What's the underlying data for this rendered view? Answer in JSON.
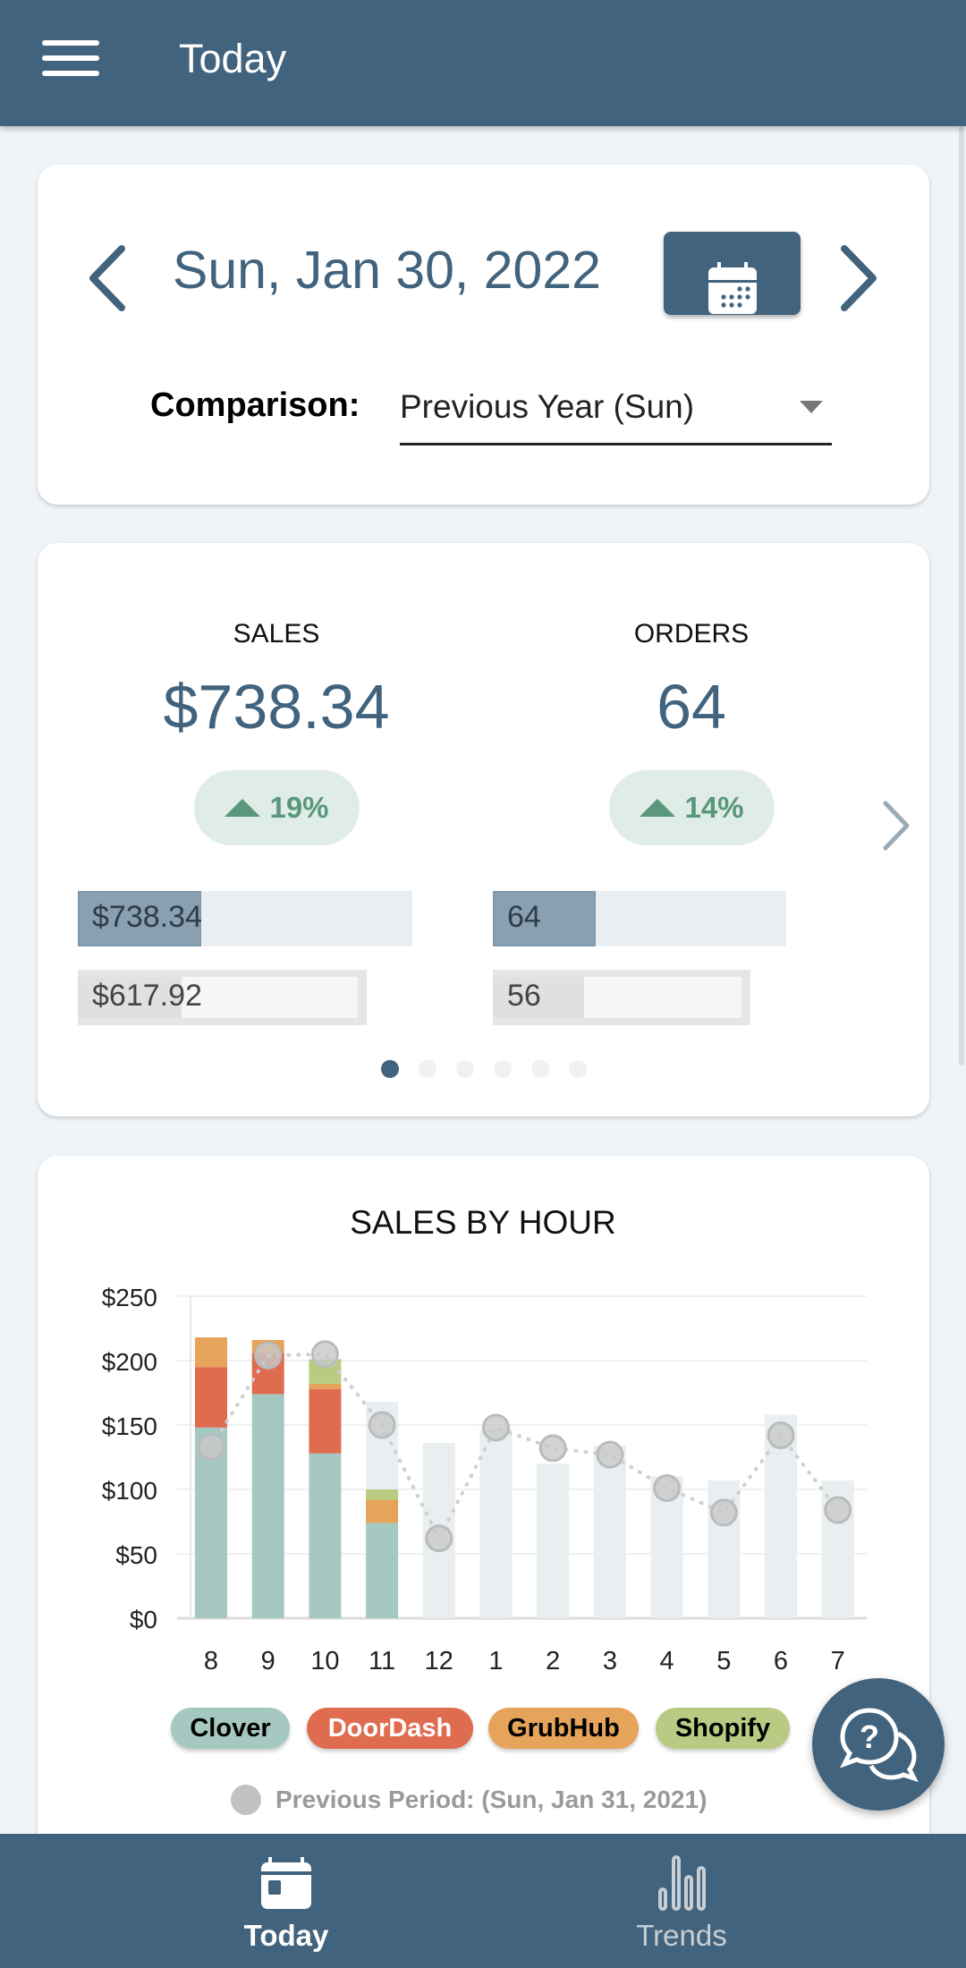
{
  "header": {
    "title": "Today",
    "menu_icon": "hamburger-icon"
  },
  "date_card": {
    "date": "Sun, Jan 30, 2022",
    "comparison_label": "Comparison:",
    "comparison_value": "Previous Year (Sun)"
  },
  "kpis": [
    {
      "label": "SALES",
      "value": "$738.34",
      "change": "19%",
      "direction": "up",
      "current_text": "$738.34",
      "current_fill": 0.37,
      "previous_text": "$617.92",
      "previous_fill": 0.31
    },
    {
      "label": "ORDERS",
      "value": "64",
      "change": "14%",
      "direction": "up",
      "current_text": "64",
      "current_fill": 0.35,
      "previous_text": "56",
      "previous_fill": 0.31
    }
  ],
  "carousel": {
    "pages": 6,
    "active": 0
  },
  "colors": {
    "primary": "#41637d",
    "clover": "#a5c9c0",
    "doordash": "#e06c50",
    "grubhub": "#e6a45a",
    "shopify": "#b9cb82",
    "previous": "#c2c2c2",
    "positive": "#5a977c"
  },
  "chart_data": {
    "type": "bar",
    "stacked": true,
    "title": "SALES BY HOUR",
    "categories": [
      "8",
      "9",
      "10",
      "11",
      "12",
      "1",
      "2",
      "3",
      "4",
      "5",
      "6",
      "7"
    ],
    "y_ticks": [
      "$0",
      "$50",
      "$100",
      "$150",
      "$200",
      "$250"
    ],
    "ylim": [
      0,
      250
    ],
    "grid": true,
    "series": [
      {
        "name": "Clover",
        "color": "#a5c9c0",
        "text_color": "#000",
        "values": [
          148,
          174,
          128,
          74,
          0,
          0,
          0,
          0,
          0,
          0,
          0,
          0
        ]
      },
      {
        "name": "DoorDash",
        "color": "#e06c50",
        "text_color": "#fff",
        "values": [
          47,
          32,
          50,
          0,
          0,
          0,
          0,
          0,
          0,
          0,
          0,
          0
        ]
      },
      {
        "name": "GrubHub",
        "color": "#e6a45a",
        "text_color": "#000",
        "values": [
          23,
          10,
          4,
          18,
          0,
          0,
          0,
          0,
          0,
          0,
          0,
          0
        ]
      },
      {
        "name": "Shopify",
        "color": "#b9cb82",
        "text_color": "#000",
        "values": [
          0,
          0,
          19,
          8,
          0,
          0,
          0,
          0,
          0,
          0,
          0,
          0
        ]
      }
    ],
    "background_bars": [
      0,
      0,
      0,
      168,
      136,
      147,
      120,
      134,
      110,
      107,
      158,
      107
    ],
    "previous_period": {
      "label": "Previous Period: (Sun, Jan 31, 2021)",
      "values": [
        133,
        204,
        205,
        150,
        62,
        148,
        132,
        127,
        101,
        82,
        142,
        84
      ]
    }
  },
  "fab": {
    "icon": "help-chat-icon"
  },
  "bottom_nav": [
    {
      "label": "Today",
      "icon": "calendar-icon",
      "active": true
    },
    {
      "label": "Trends",
      "icon": "bar-chart-icon",
      "active": false
    }
  ]
}
